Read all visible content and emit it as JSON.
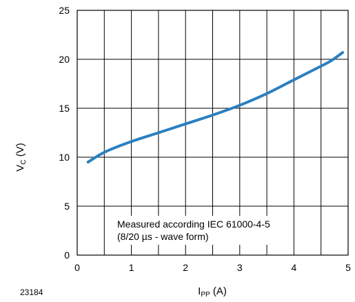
{
  "figure_id": "23184",
  "chart_data": {
    "type": "line",
    "title": "",
    "xlabel": {
      "main": "I",
      "sub": "PP",
      "unit": " (A)"
    },
    "ylabel": {
      "main": "V",
      "sub": "C",
      "unit": " (V)"
    },
    "xlim": [
      0,
      5
    ],
    "ylim": [
      0,
      25
    ],
    "xticks": [
      0,
      1,
      2,
      3,
      4,
      5
    ],
    "yticks": [
      0,
      5,
      10,
      15,
      20,
      25
    ],
    "x_minor_step": 0.5,
    "grid": true,
    "series": [
      {
        "color": "#2a7fc0",
        "x": [
          0.2,
          0.5,
          1.0,
          1.5,
          2.0,
          2.5,
          3.0,
          3.5,
          4.0,
          4.5,
          4.7,
          4.9
        ],
        "y": [
          9.5,
          10.5,
          11.6,
          12.5,
          13.4,
          14.3,
          15.3,
          16.5,
          17.9,
          19.3,
          19.9,
          20.7
        ]
      }
    ],
    "annotation": [
      "Measured according IEC 61000-4-5",
      "(8/20 µs - wave form)"
    ]
  }
}
